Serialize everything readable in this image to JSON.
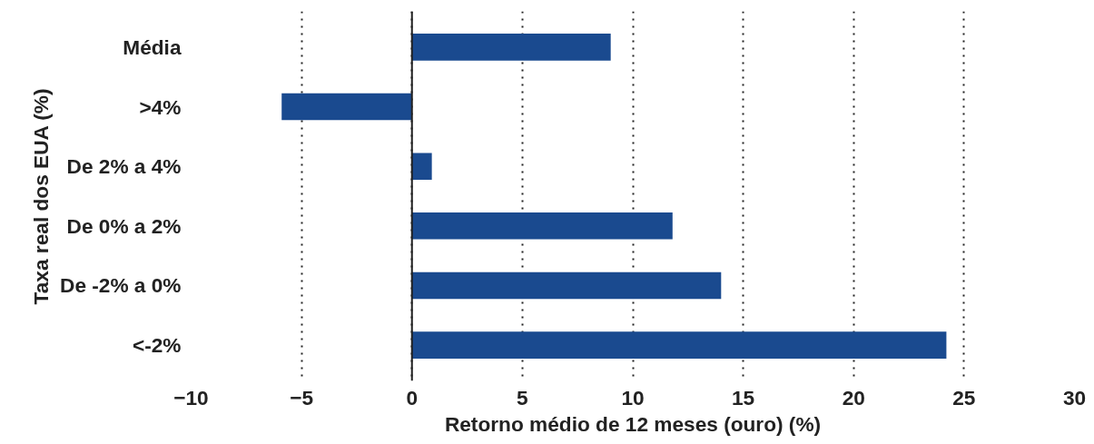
{
  "chart_data": {
    "type": "bar",
    "orientation": "horizontal",
    "xlabel": "Retorno médio de 12 meses (ouro) (%)",
    "ylabel": "Taxa real dos EUA (%)",
    "categories": [
      "Média",
      ">4%",
      "De 2% a 4%",
      "De 0% a 2%",
      "De -2% a 0%",
      "<-2%"
    ],
    "values": [
      9.0,
      -5.9,
      0.9,
      11.8,
      14.0,
      24.2
    ],
    "color": "#1a4a8f",
    "xlim": [
      -10,
      30
    ],
    "xticks": [
      -10,
      -5,
      0,
      5,
      10,
      15,
      20,
      25,
      30
    ],
    "grid": "x",
    "ref_lines": [
      {
        "axis": "x",
        "value": 0,
        "color": "#222222",
        "line_style": "solid"
      }
    ]
  }
}
